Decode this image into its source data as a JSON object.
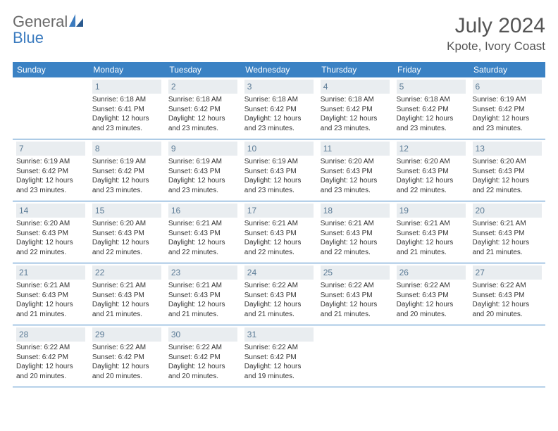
{
  "brand": {
    "word1": "General",
    "word2": "Blue"
  },
  "title": {
    "monthYear": "July 2024",
    "location": "Kpote, Ivory Coast"
  },
  "style": {
    "header_bg": "#3b82c4",
    "header_text": "#ffffff",
    "daynum_bg": "#e9edf0",
    "daynum_color": "#5a7a95",
    "border_color": "#3b82c4",
    "body_text": "#333333",
    "page_bg": "#ffffff",
    "font_family": "Arial, Helvetica, sans-serif",
    "title_fontsize": 30,
    "location_fontsize": 17,
    "th_fontsize": 12,
    "cell_fontsize": 10
  },
  "weekdays": [
    "Sunday",
    "Monday",
    "Tuesday",
    "Wednesday",
    "Thursday",
    "Friday",
    "Saturday"
  ],
  "rows": [
    [
      {
        "num": "",
        "sunrise": "",
        "sunset": "",
        "daylight": ""
      },
      {
        "num": "1",
        "sunrise": "6:18 AM",
        "sunset": "6:41 PM",
        "daylight": "12 hours and 23 minutes."
      },
      {
        "num": "2",
        "sunrise": "6:18 AM",
        "sunset": "6:42 PM",
        "daylight": "12 hours and 23 minutes."
      },
      {
        "num": "3",
        "sunrise": "6:18 AM",
        "sunset": "6:42 PM",
        "daylight": "12 hours and 23 minutes."
      },
      {
        "num": "4",
        "sunrise": "6:18 AM",
        "sunset": "6:42 PM",
        "daylight": "12 hours and 23 minutes."
      },
      {
        "num": "5",
        "sunrise": "6:18 AM",
        "sunset": "6:42 PM",
        "daylight": "12 hours and 23 minutes."
      },
      {
        "num": "6",
        "sunrise": "6:19 AM",
        "sunset": "6:42 PM",
        "daylight": "12 hours and 23 minutes."
      }
    ],
    [
      {
        "num": "7",
        "sunrise": "6:19 AM",
        "sunset": "6:42 PM",
        "daylight": "12 hours and 23 minutes."
      },
      {
        "num": "8",
        "sunrise": "6:19 AM",
        "sunset": "6:42 PM",
        "daylight": "12 hours and 23 minutes."
      },
      {
        "num": "9",
        "sunrise": "6:19 AM",
        "sunset": "6:43 PM",
        "daylight": "12 hours and 23 minutes."
      },
      {
        "num": "10",
        "sunrise": "6:19 AM",
        "sunset": "6:43 PM",
        "daylight": "12 hours and 23 minutes."
      },
      {
        "num": "11",
        "sunrise": "6:20 AM",
        "sunset": "6:43 PM",
        "daylight": "12 hours and 23 minutes."
      },
      {
        "num": "12",
        "sunrise": "6:20 AM",
        "sunset": "6:43 PM",
        "daylight": "12 hours and 22 minutes."
      },
      {
        "num": "13",
        "sunrise": "6:20 AM",
        "sunset": "6:43 PM",
        "daylight": "12 hours and 22 minutes."
      }
    ],
    [
      {
        "num": "14",
        "sunrise": "6:20 AM",
        "sunset": "6:43 PM",
        "daylight": "12 hours and 22 minutes."
      },
      {
        "num": "15",
        "sunrise": "6:20 AM",
        "sunset": "6:43 PM",
        "daylight": "12 hours and 22 minutes."
      },
      {
        "num": "16",
        "sunrise": "6:21 AM",
        "sunset": "6:43 PM",
        "daylight": "12 hours and 22 minutes."
      },
      {
        "num": "17",
        "sunrise": "6:21 AM",
        "sunset": "6:43 PM",
        "daylight": "12 hours and 22 minutes."
      },
      {
        "num": "18",
        "sunrise": "6:21 AM",
        "sunset": "6:43 PM",
        "daylight": "12 hours and 22 minutes."
      },
      {
        "num": "19",
        "sunrise": "6:21 AM",
        "sunset": "6:43 PM",
        "daylight": "12 hours and 21 minutes."
      },
      {
        "num": "20",
        "sunrise": "6:21 AM",
        "sunset": "6:43 PM",
        "daylight": "12 hours and 21 minutes."
      }
    ],
    [
      {
        "num": "21",
        "sunrise": "6:21 AM",
        "sunset": "6:43 PM",
        "daylight": "12 hours and 21 minutes."
      },
      {
        "num": "22",
        "sunrise": "6:21 AM",
        "sunset": "6:43 PM",
        "daylight": "12 hours and 21 minutes."
      },
      {
        "num": "23",
        "sunrise": "6:21 AM",
        "sunset": "6:43 PM",
        "daylight": "12 hours and 21 minutes."
      },
      {
        "num": "24",
        "sunrise": "6:22 AM",
        "sunset": "6:43 PM",
        "daylight": "12 hours and 21 minutes."
      },
      {
        "num": "25",
        "sunrise": "6:22 AM",
        "sunset": "6:43 PM",
        "daylight": "12 hours and 21 minutes."
      },
      {
        "num": "26",
        "sunrise": "6:22 AM",
        "sunset": "6:43 PM",
        "daylight": "12 hours and 20 minutes."
      },
      {
        "num": "27",
        "sunrise": "6:22 AM",
        "sunset": "6:43 PM",
        "daylight": "12 hours and 20 minutes."
      }
    ],
    [
      {
        "num": "28",
        "sunrise": "6:22 AM",
        "sunset": "6:42 PM",
        "daylight": "12 hours and 20 minutes."
      },
      {
        "num": "29",
        "sunrise": "6:22 AM",
        "sunset": "6:42 PM",
        "daylight": "12 hours and 20 minutes."
      },
      {
        "num": "30",
        "sunrise": "6:22 AM",
        "sunset": "6:42 PM",
        "daylight": "12 hours and 20 minutes."
      },
      {
        "num": "31",
        "sunrise": "6:22 AM",
        "sunset": "6:42 PM",
        "daylight": "12 hours and 19 minutes."
      },
      {
        "num": "",
        "sunrise": "",
        "sunset": "",
        "daylight": ""
      },
      {
        "num": "",
        "sunrise": "",
        "sunset": "",
        "daylight": ""
      },
      {
        "num": "",
        "sunrise": "",
        "sunset": "",
        "daylight": ""
      }
    ]
  ],
  "labels": {
    "sunrise": "Sunrise: ",
    "sunset": "Sunset: ",
    "daylight": "Daylight: "
  }
}
